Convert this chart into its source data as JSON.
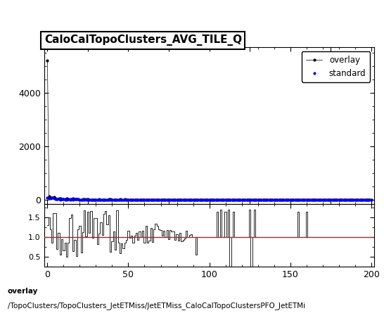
{
  "title": "CaloCalTopoClusters_AVG_TILE_Q",
  "title_fontsize": 11,
  "title_fontweight": "bold",
  "title_bbox": {
    "boxstyle": "square,pad=0.3",
    "facecolor": "white",
    "edgecolor": "black",
    "linewidth": 1.5
  },
  "legend_labels": [
    "overlay",
    "standard"
  ],
  "legend_colors": [
    "black",
    "blue"
  ],
  "marker": "o",
  "markersize": 3,
  "main_ylim": [
    -150,
    5700
  ],
  "main_yticks": [
    0,
    2000,
    4000
  ],
  "ratio_ylim": [
    0.25,
    1.85
  ],
  "ratio_yticks": [
    0.5,
    1.0,
    1.5
  ],
  "xlim": [
    -2,
    202
  ],
  "xticks": [
    0,
    50,
    100,
    150,
    200
  ],
  "ratio_hline_y": 1.0,
  "ratio_hline_color": "red",
  "ratio_hline_linewidth": 1.0,
  "footer_text1": "overlay",
  "footer_text2": "/TopoClusters/TopoClusters_JetETMiss/JetETMiss_CaloCalTopoClustersPFO_JetETMi",
  "footer_fontsize": 7.5,
  "background_color": "white",
  "scatter_linewidth": 0.5,
  "ratio_linewidth": 0.6,
  "n_points": 201
}
